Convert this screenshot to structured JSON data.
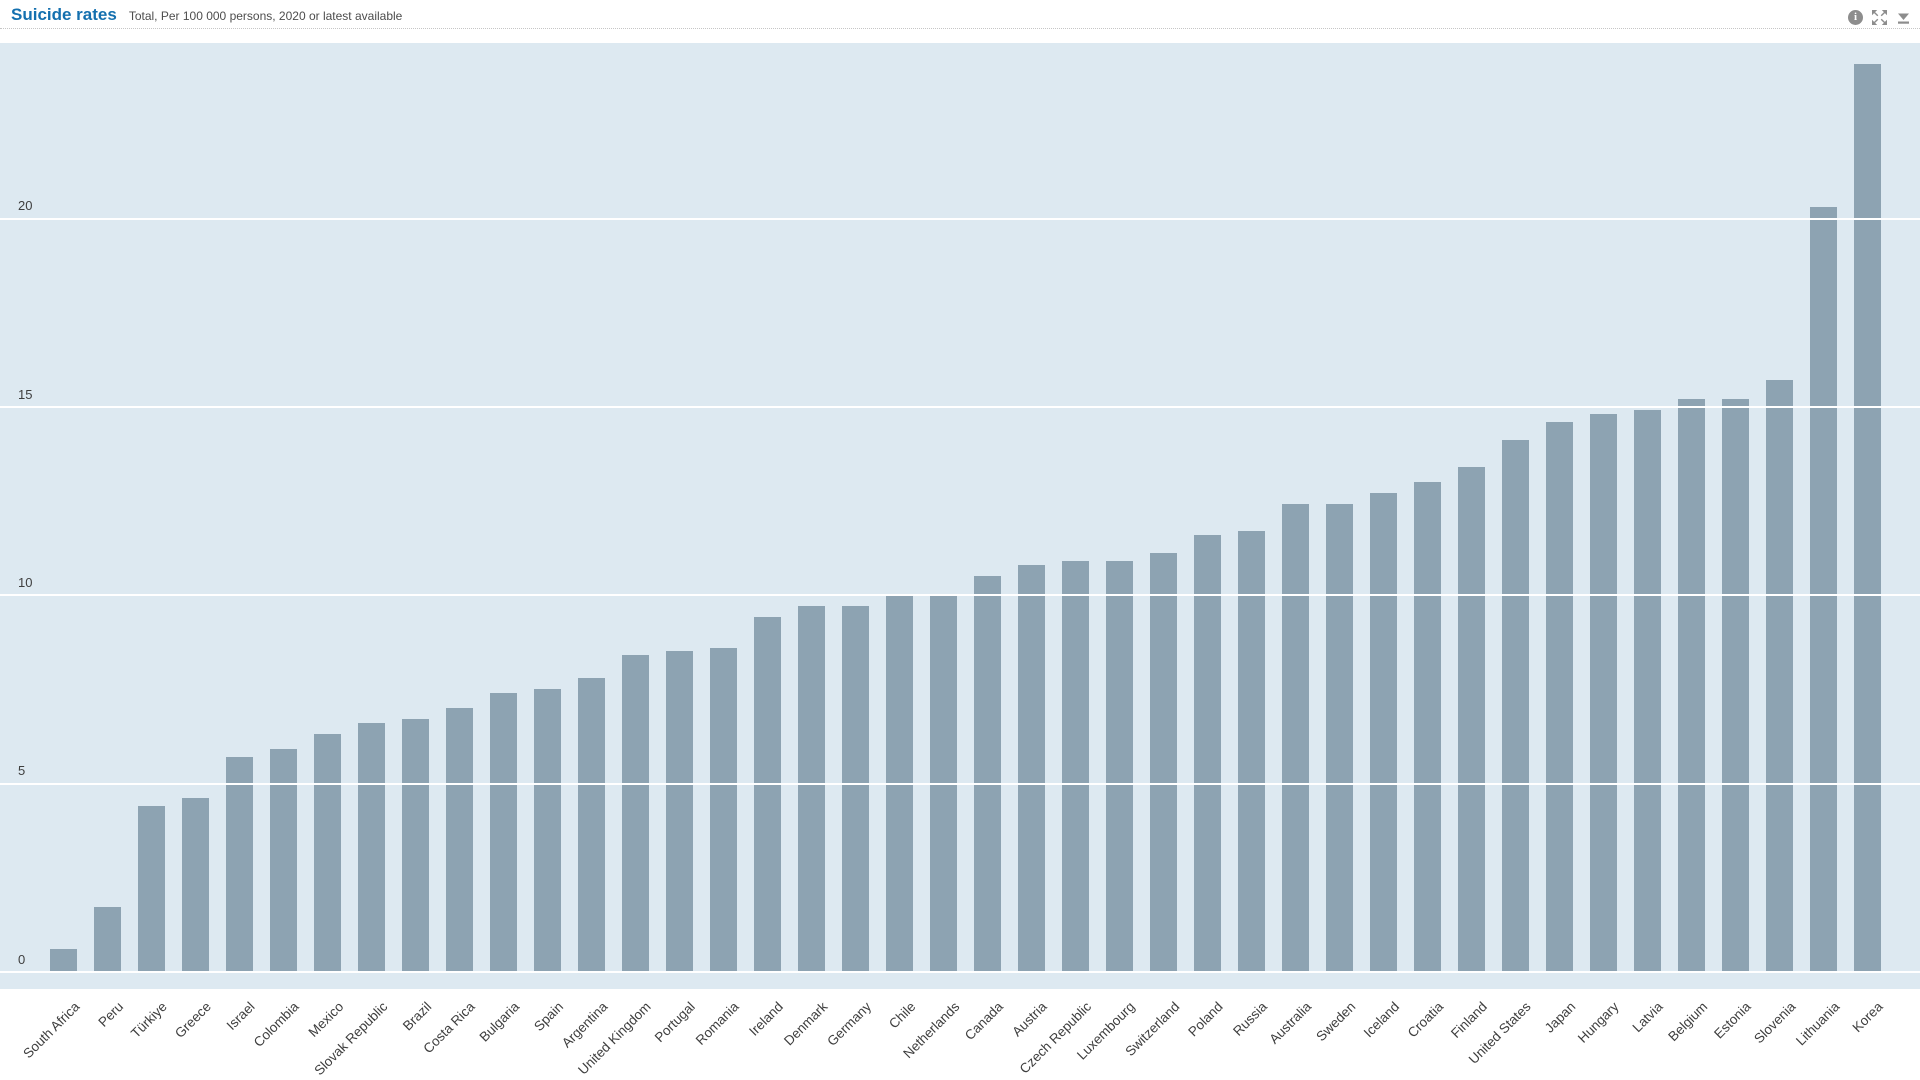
{
  "header": {
    "title": "Suicide rates",
    "subtitle": "Total, Per 100 000 persons, 2020 or latest available",
    "icons": [
      {
        "name": "info-icon",
        "glyph": "i"
      },
      {
        "name": "fullscreen-icon"
      },
      {
        "name": "download-icon"
      }
    ]
  },
  "chart_data": {
    "type": "bar",
    "title": "Suicide rates",
    "subtitle": "Total, Per 100 000 persons, 2020 or latest available",
    "unit": "Per 100 000 persons",
    "categories": [
      "South Africa",
      "Peru",
      "Türkiye",
      "Greece",
      "Israel",
      "Colombia",
      "Mexico",
      "Slovak Republic",
      "Brazil",
      "Costa Rica",
      "Bulgaria",
      "Spain",
      "Argentina",
      "United Kingdom",
      "Portugal",
      "Romania",
      "Ireland",
      "Denmark",
      "Germany",
      "Chile",
      "Netherlands",
      "Canada",
      "Austria",
      "Czech Republic",
      "Luxembourg",
      "Switzerland",
      "Poland",
      "Russia",
      "Australia",
      "Sweden",
      "Iceland",
      "Croatia",
      "Finland",
      "United States",
      "Japan",
      "Hungary",
      "Latvia",
      "Belgium",
      "Estonia",
      "Slovenia",
      "Lithuania",
      "Korea"
    ],
    "values": [
      0.6,
      1.7,
      4.4,
      4.6,
      5.7,
      5.9,
      6.3,
      6.6,
      6.7,
      7.0,
      7.4,
      7.5,
      7.8,
      8.4,
      8.5,
      8.6,
      9.4,
      9.7,
      9.7,
      10.0,
      10.0,
      10.5,
      10.8,
      10.9,
      10.9,
      11.1,
      11.6,
      11.7,
      12.4,
      12.4,
      12.7,
      13.0,
      13.4,
      14.1,
      14.6,
      14.8,
      14.9,
      15.2,
      15.2,
      15.7,
      20.3,
      24.1
    ],
    "yticks": [
      0,
      5,
      10,
      15,
      20
    ],
    "ytick_labels": [
      "0",
      "5",
      "10",
      "15",
      "20"
    ],
    "ylim": [
      0,
      24.65
    ],
    "xlabel": "",
    "ylabel": "",
    "grid": "horizontal",
    "legend": "none",
    "colors": {
      "bar": "#8da3b2",
      "plot_bg": "#dde9f1",
      "grid": "#ffffff",
      "title": "#1470af",
      "subtitle": "#4d4d4d",
      "axis_text": "#3e3e3e",
      "icon": "#8d8d8d"
    }
  }
}
